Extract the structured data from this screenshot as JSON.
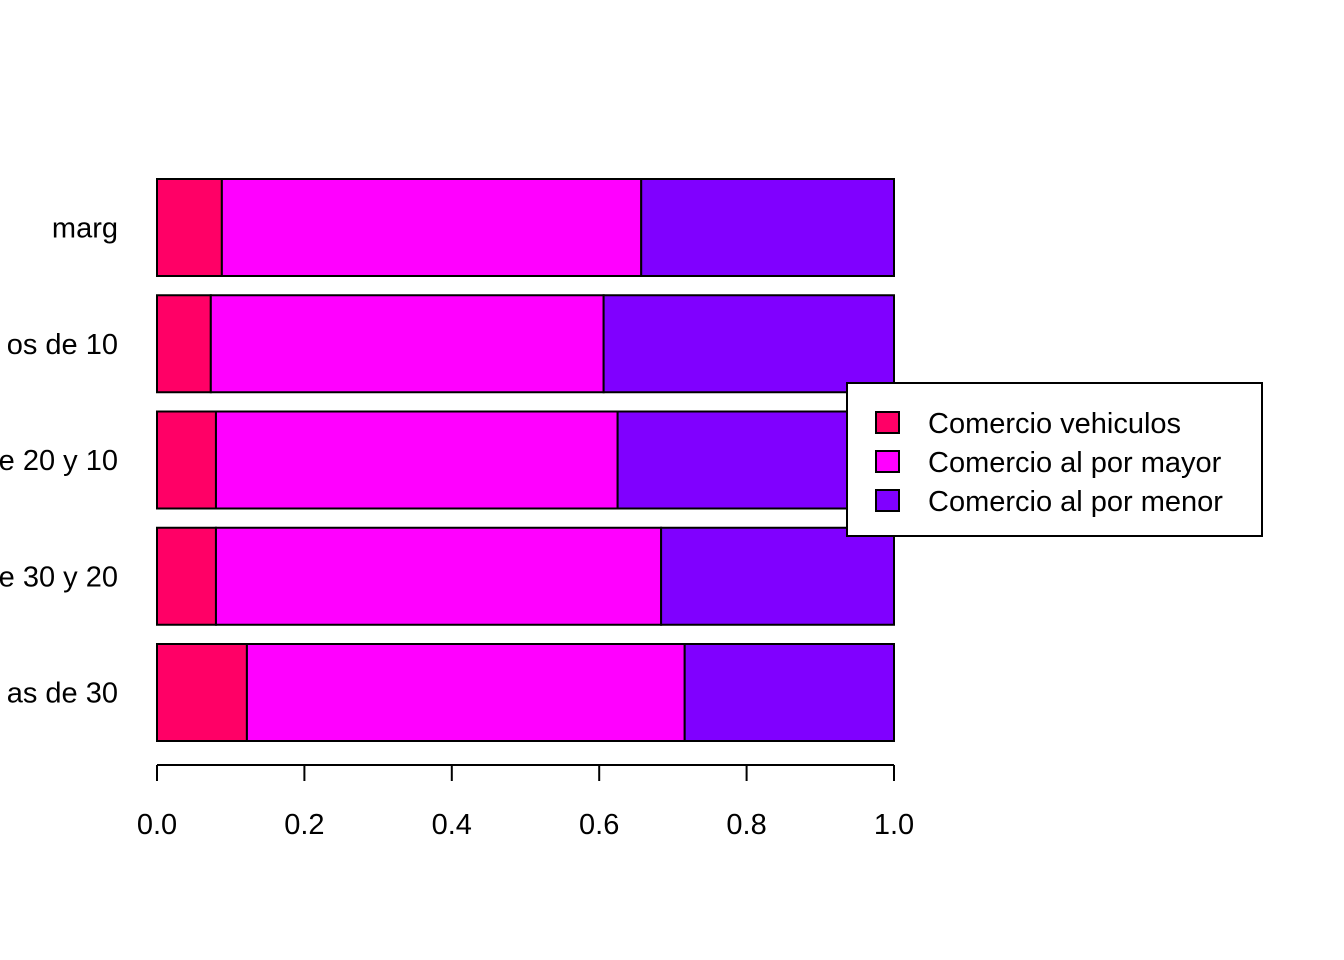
{
  "chart_data": {
    "type": "bar",
    "orientation": "horizontal",
    "stacked": true,
    "categories": [
      "marg",
      "os de 10",
      "e 20 y 10",
      "e 30 y 20",
      "as de 30"
    ],
    "series": [
      {
        "name": "Comercio vehiculos",
        "color": "#FF0066",
        "values": [
          0.088,
          0.073,
          0.08,
          0.08,
          0.122
        ]
      },
      {
        "name": "Comercio al por mayor",
        "color": "#FF00FF",
        "values": [
          0.569,
          0.533,
          0.545,
          0.604,
          0.594
        ]
      },
      {
        "name": "Comercio al por menor",
        "color": "#8000FF",
        "values": [
          0.343,
          0.394,
          0.375,
          0.316,
          0.284
        ]
      }
    ],
    "x_ticks": [
      "0.0",
      "0.2",
      "0.4",
      "0.6",
      "0.8",
      "1.0"
    ],
    "xlim": [
      0,
      1
    ],
    "legend_position": "right",
    "grid": false
  }
}
